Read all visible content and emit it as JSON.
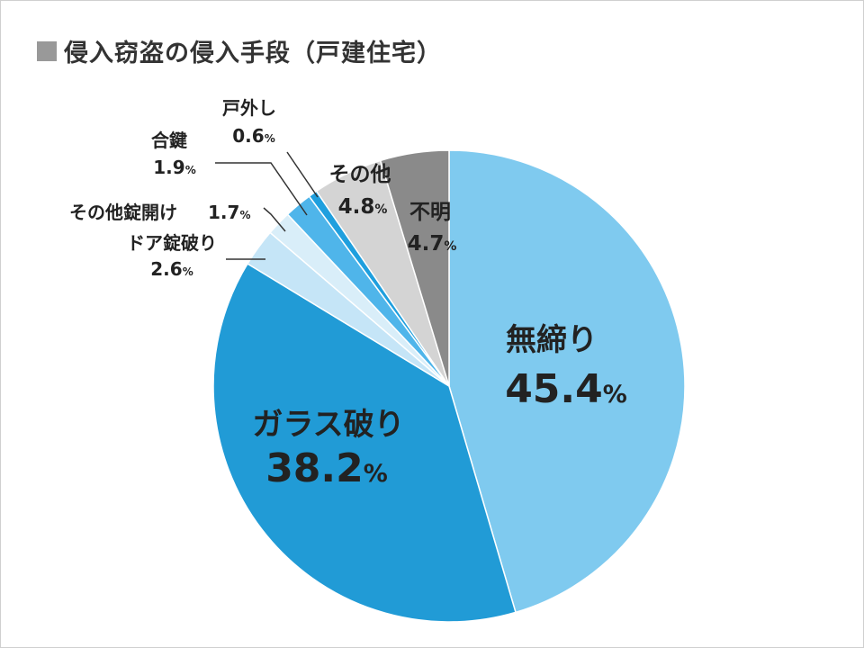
{
  "title": "侵入窃盗の侵入手段（戸建住宅）",
  "chart_data": {
    "type": "pie",
    "title": "侵入窃盗の侵入手段（戸建住宅）",
    "unit": "%",
    "start": "12 o'clock",
    "direction": "clockwise",
    "slices": [
      {
        "label": "無締り",
        "value": 45.4,
        "color": "#7fcaef"
      },
      {
        "label": "ガラス破り",
        "value": 38.2,
        "color": "#219bd6"
      },
      {
        "label": "ドア錠破り",
        "value": 2.6,
        "color": "#c5e5f7"
      },
      {
        "label": "その他錠開け",
        "value": 1.7,
        "color": "#d9eef9"
      },
      {
        "label": "合鍵",
        "value": 1.9,
        "color": "#4fb5ea"
      },
      {
        "label": "戸外し",
        "value": 0.6,
        "color": "#1f9fde"
      },
      {
        "label": "その他",
        "value": 4.8,
        "color": "#d4d4d4"
      },
      {
        "label": "不明",
        "value": 4.7,
        "color": "#8a8a8a"
      }
    ]
  }
}
